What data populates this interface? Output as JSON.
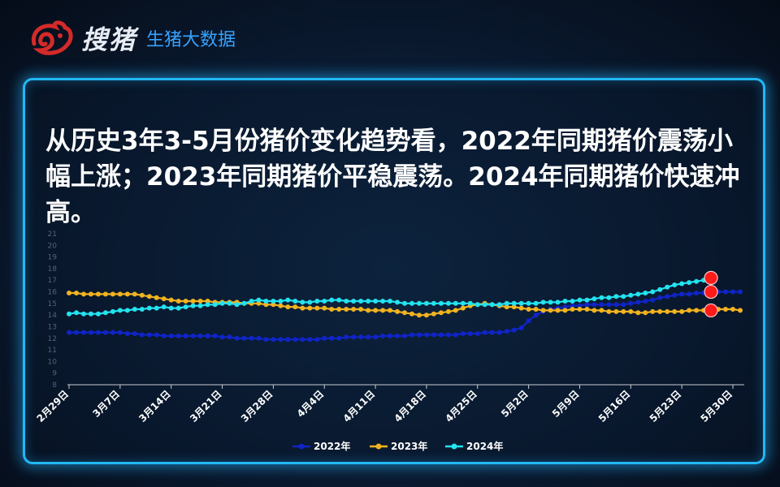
{
  "brand": {
    "name": "搜猪",
    "subtitle": "生猪大数据"
  },
  "headline": "从历史3年3-5月份猪价变化趋势看，2022年同期猪价震荡小幅上涨；2023年同期猪价平稳震荡。2024年同期猪价快速冲高。",
  "colors": {
    "s2022": "#1024c8",
    "s2023": "#f2b320",
    "s2024": "#23e3f0",
    "highlight": "#ff1a1a",
    "panel_border": "#22b8f5"
  },
  "chart_data": {
    "type": "line",
    "ylim": [
      8,
      21
    ],
    "yticks": [
      8,
      9,
      10,
      11,
      12,
      13,
      14,
      15,
      16,
      17,
      18,
      19,
      20,
      21
    ],
    "xlabels": [
      "2月29日",
      "3月7日",
      "3月14日",
      "3月21日",
      "3月28日",
      "4月4日",
      "4月11日",
      "4月18日",
      "4月25日",
      "5月2日",
      "5月9日",
      "5月16日",
      "5月23日",
      "5月30日"
    ],
    "legend_position": "bottom",
    "highlight_points": [
      {
        "series": "2024年",
        "index": 88,
        "value": 17.2
      },
      {
        "series": "2023年",
        "index": 88,
        "value": 14.4
      },
      {
        "series": "2022年",
        "index": 88,
        "value": 16.0
      }
    ],
    "series": [
      {
        "name": "2022年",
        "values": [
          12.5,
          12.5,
          12.5,
          12.5,
          12.5,
          12.5,
          12.5,
          12.5,
          12.4,
          12.4,
          12.3,
          12.3,
          12.3,
          12.2,
          12.2,
          12.2,
          12.2,
          12.2,
          12.2,
          12.2,
          12.2,
          12.1,
          12.1,
          12.0,
          12.0,
          12.0,
          12.0,
          11.9,
          11.9,
          11.9,
          11.9,
          11.9,
          11.9,
          11.9,
          11.9,
          12.0,
          12.0,
          12.0,
          12.1,
          12.1,
          12.1,
          12.1,
          12.1,
          12.2,
          12.2,
          12.2,
          12.2,
          12.3,
          12.3,
          12.3,
          12.3,
          12.3,
          12.3,
          12.3,
          12.4,
          12.4,
          12.4,
          12.5,
          12.5,
          12.5,
          12.6,
          12.7,
          12.9,
          13.5,
          14.0,
          14.3,
          14.5,
          14.6,
          14.7,
          14.8,
          14.8,
          14.9,
          14.9,
          14.9,
          14.9,
          14.9,
          14.9,
          15.0,
          15.1,
          15.2,
          15.3,
          15.5,
          15.6,
          15.7,
          15.8,
          15.8,
          15.9,
          15.9,
          16.0,
          16.0,
          16.0,
          16.0,
          16.0
        ]
      },
      {
        "name": "2023年",
        "values": [
          15.9,
          15.9,
          15.8,
          15.8,
          15.8,
          15.8,
          15.8,
          15.8,
          15.8,
          15.8,
          15.7,
          15.6,
          15.5,
          15.4,
          15.3,
          15.2,
          15.2,
          15.2,
          15.2,
          15.2,
          15.1,
          15.1,
          15.1,
          15.1,
          15.0,
          15.0,
          15.0,
          14.9,
          14.9,
          14.8,
          14.7,
          14.7,
          14.6,
          14.6,
          14.6,
          14.6,
          14.5,
          14.5,
          14.5,
          14.5,
          14.5,
          14.4,
          14.4,
          14.4,
          14.4,
          14.3,
          14.2,
          14.1,
          14.0,
          14.0,
          14.1,
          14.2,
          14.3,
          14.4,
          14.6,
          14.8,
          14.9,
          15.0,
          14.9,
          14.8,
          14.7,
          14.7,
          14.6,
          14.5,
          14.5,
          14.4,
          14.4,
          14.4,
          14.4,
          14.5,
          14.5,
          14.5,
          14.4,
          14.4,
          14.3,
          14.3,
          14.3,
          14.3,
          14.2,
          14.2,
          14.3,
          14.3,
          14.3,
          14.3,
          14.3,
          14.4,
          14.4,
          14.4,
          14.4,
          14.5,
          14.5,
          14.5,
          14.4
        ]
      },
      {
        "name": "2024年",
        "values": [
          14.1,
          14.2,
          14.1,
          14.1,
          14.1,
          14.2,
          14.3,
          14.4,
          14.4,
          14.5,
          14.5,
          14.6,
          14.6,
          14.7,
          14.6,
          14.6,
          14.7,
          14.8,
          14.8,
          14.9,
          14.9,
          15.0,
          15.0,
          14.9,
          15.0,
          15.2,
          15.3,
          15.2,
          15.2,
          15.2,
          15.3,
          15.2,
          15.1,
          15.1,
          15.2,
          15.2,
          15.3,
          15.3,
          15.2,
          15.2,
          15.2,
          15.2,
          15.2,
          15.2,
          15.2,
          15.1,
          15.0,
          15.0,
          15.0,
          15.0,
          15.0,
          15.0,
          15.0,
          15.0,
          15.0,
          15.0,
          14.9,
          14.9,
          14.9,
          14.9,
          15.0,
          15.0,
          15.0,
          15.0,
          15.0,
          15.1,
          15.1,
          15.1,
          15.2,
          15.2,
          15.3,
          15.3,
          15.4,
          15.5,
          15.5,
          15.6,
          15.6,
          15.7,
          15.8,
          15.9,
          16.0,
          16.2,
          16.4,
          16.6,
          16.7,
          16.8,
          16.9,
          17.0,
          17.2
        ]
      }
    ]
  }
}
